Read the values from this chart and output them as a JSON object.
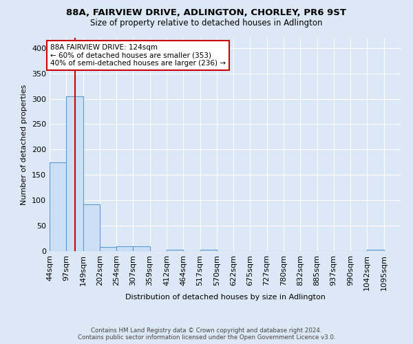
{
  "title": "88A, FAIRVIEW DRIVE, ADLINGTON, CHORLEY, PR6 9ST",
  "subtitle": "Size of property relative to detached houses in Adlington",
  "xlabel": "Distribution of detached houses by size in Adlington",
  "ylabel": "Number of detached properties",
  "footer_line1": "Contains HM Land Registry data © Crown copyright and database right 2024.",
  "footer_line2": "Contains public sector information licensed under the Open Government Licence v3.0.",
  "bins": [
    44,
    97,
    149,
    202,
    254,
    307,
    359,
    412,
    464,
    517,
    570,
    622,
    675,
    727,
    780,
    832,
    885,
    937,
    990,
    1042,
    1095
  ],
  "counts": [
    175,
    305,
    92,
    8,
    9,
    9,
    0,
    3,
    0,
    3,
    0,
    0,
    0,
    0,
    0,
    0,
    0,
    0,
    0,
    3
  ],
  "bar_color": "#cce0f5",
  "bar_edge_color": "#5b9bd5",
  "property_size": 124,
  "vline_color": "#cc0000",
  "annotation_line1": "88A FAIRVIEW DRIVE: 124sqm",
  "annotation_line2": "← 60% of detached houses are smaller (353)",
  "annotation_line3": "40% of semi-detached houses are larger (236) →",
  "annotation_box_color": "white",
  "annotation_box_edge": "#cc0000",
  "ylim": [
    0,
    420
  ],
  "background_color": "#dce8f5",
  "grid_color": "white"
}
